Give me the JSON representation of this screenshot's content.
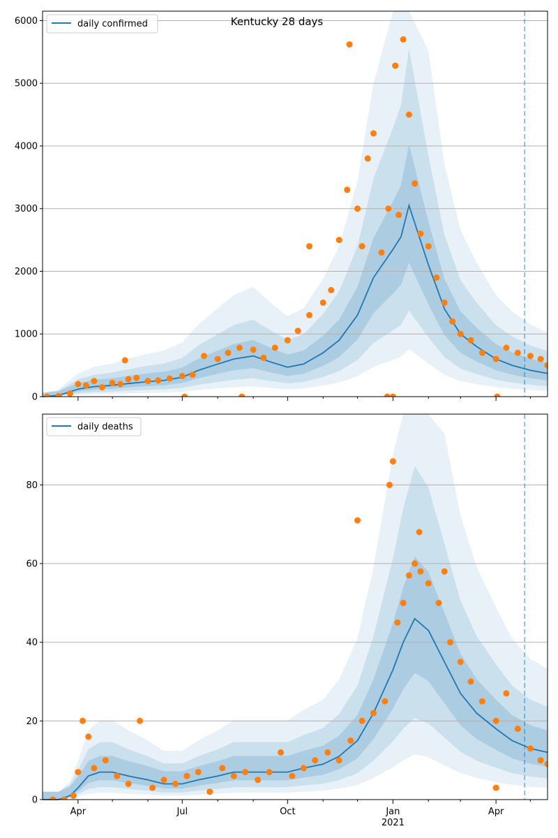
{
  "chart_data": [
    {
      "type": "line",
      "title": "Kentucky 28 days",
      "xlabel": "",
      "ylabel": "",
      "ylim": [
        0,
        6150
      ],
      "yticks": [
        0,
        1000,
        2000,
        3000,
        4000,
        5000,
        6000
      ],
      "grid": "horizontal",
      "legend": "upper-left",
      "x_range": [
        "2020-03-01",
        "2021-05-16"
      ],
      "forecast_line_date": "2021-04-26",
      "series": [
        {
          "name": "daily confirmed",
          "kind": "line",
          "color": "#1f77b4",
          "x": [
            "2020-03-01",
            "2020-03-15",
            "2020-04-01",
            "2020-04-15",
            "2020-05-01",
            "2020-05-15",
            "2020-06-01",
            "2020-06-15",
            "2020-07-01",
            "2020-07-15",
            "2020-08-01",
            "2020-08-15",
            "2020-09-01",
            "2020-09-15",
            "2020-10-01",
            "2020-10-15",
            "2020-11-01",
            "2020-11-15",
            "2020-12-01",
            "2020-12-15",
            "2021-01-01",
            "2021-01-08",
            "2021-01-15",
            "2021-02-01",
            "2021-02-15",
            "2021-03-01",
            "2021-03-15",
            "2021-04-01",
            "2021-04-15",
            "2021-05-01",
            "2021-05-16"
          ],
          "y": [
            0,
            20,
            120,
            160,
            180,
            210,
            240,
            260,
            310,
            420,
            520,
            600,
            650,
            560,
            470,
            520,
            700,
            900,
            1300,
            1900,
            2350,
            2550,
            3050,
            2100,
            1400,
            1000,
            800,
            600,
            500,
            420,
            370
          ]
        },
        {
          "name": "",
          "kind": "scatter",
          "color": "#ff7f0e",
          "x": [
            "2020-03-05",
            "2020-03-15",
            "2020-03-25",
            "2020-04-01",
            "2020-04-08",
            "2020-04-15",
            "2020-04-22",
            "2020-05-01",
            "2020-05-08",
            "2020-05-15",
            "2020-05-22",
            "2020-06-01",
            "2020-06-10",
            "2020-06-20",
            "2020-07-01",
            "2020-07-10",
            "2020-07-20",
            "2020-08-01",
            "2020-08-10",
            "2020-08-20",
            "2020-09-01",
            "2020-09-10",
            "2020-09-20",
            "2020-10-01",
            "2020-10-10",
            "2020-10-20",
            "2020-11-01",
            "2020-11-08",
            "2020-11-15",
            "2020-11-22",
            "2020-12-01",
            "2020-12-05",
            "2020-12-10",
            "2020-12-15",
            "2020-12-22",
            "2020-12-28",
            "2021-01-03",
            "2021-01-06",
            "2021-01-10",
            "2021-01-15",
            "2021-01-20",
            "2021-01-25",
            "2021-02-01",
            "2021-02-08",
            "2021-02-15",
            "2021-02-22",
            "2021-03-01",
            "2021-03-10",
            "2021-03-20",
            "2021-04-01",
            "2021-04-10",
            "2021-04-20",
            "2021-05-01",
            "2021-05-10",
            "2021-05-16",
            "2020-05-12",
            "2020-07-03",
            "2020-08-22",
            "2020-10-20",
            "2020-11-24",
            "2020-12-27",
            "2021-01-01",
            "2021-04-02"
          ],
          "y": [
            0,
            10,
            50,
            200,
            180,
            250,
            150,
            220,
            200,
            280,
            300,
            250,
            260,
            290,
            330,
            350,
            650,
            600,
            700,
            780,
            750,
            620,
            780,
            900,
            1050,
            1300,
            1500,
            1700,
            2500,
            3300,
            3000,
            2400,
            3800,
            4200,
            2300,
            3000,
            5280,
            2900,
            5700,
            4500,
            3400,
            2600,
            2400,
            1900,
            1500,
            1200,
            1000,
            900,
            700,
            600,
            780,
            700,
            650,
            600,
            500,
            580,
            0,
            0,
            2400,
            5620,
            0,
            0,
            0
          ]
        }
      ]
    },
    {
      "type": "line",
      "title": "",
      "xlabel": "",
      "ylabel": "",
      "ylim": [
        0,
        98
      ],
      "yticks": [
        0,
        20,
        40,
        60,
        80
      ],
      "grid": "horizontal",
      "legend": "upper-left",
      "x_range": [
        "2020-03-01",
        "2021-05-16"
      ],
      "x_tick_labels": [
        {
          "date": "2020-04-01",
          "label": "Apr"
        },
        {
          "date": "2020-07-01",
          "label": "Jul"
        },
        {
          "date": "2020-10-01",
          "label": "Oct"
        },
        {
          "date": "2021-01-01",
          "label": "Jan"
        },
        {
          "date": "2021-04-01",
          "label": "Apr"
        }
      ],
      "x_year_label": {
        "date": "2021-01-01",
        "label": "2021"
      },
      "forecast_line_date": "2021-04-26",
      "series": [
        {
          "name": "daily deaths",
          "kind": "line",
          "color": "#1f77b4",
          "x": [
            "2020-03-01",
            "2020-03-15",
            "2020-03-25",
            "2020-04-01",
            "2020-04-10",
            "2020-04-20",
            "2020-05-01",
            "2020-05-15",
            "2020-06-01",
            "2020-06-15",
            "2020-07-01",
            "2020-07-15",
            "2020-08-01",
            "2020-08-15",
            "2020-09-01",
            "2020-09-15",
            "2020-10-01",
            "2020-10-15",
            "2020-11-01",
            "2020-11-15",
            "2020-12-01",
            "2020-12-15",
            "2021-01-01",
            "2021-01-10",
            "2021-01-20",
            "2021-02-01",
            "2021-02-15",
            "2021-03-01",
            "2021-03-15",
            "2021-04-01",
            "2021-04-15",
            "2021-05-01",
            "2021-05-16"
          ],
          "y": [
            0,
            0,
            1,
            3,
            6,
            7,
            7,
            6,
            5,
            4,
            4,
            5,
            6,
            7,
            7,
            7,
            7,
            8,
            9,
            11,
            15,
            22,
            33,
            40,
            46,
            43,
            35,
            27,
            22,
            18,
            15,
            13,
            12
          ]
        },
        {
          "name": "",
          "kind": "scatter",
          "color": "#ff7f0e",
          "x": [
            "2020-03-10",
            "2020-03-20",
            "2020-03-28",
            "2020-04-01",
            "2020-04-05",
            "2020-04-10",
            "2020-04-15",
            "2020-04-25",
            "2020-05-05",
            "2020-05-15",
            "2020-05-25",
            "2020-06-05",
            "2020-06-15",
            "2020-06-25",
            "2020-07-05",
            "2020-07-15",
            "2020-07-25",
            "2020-08-05",
            "2020-08-15",
            "2020-08-25",
            "2020-09-05",
            "2020-09-15",
            "2020-09-25",
            "2020-10-05",
            "2020-10-15",
            "2020-10-25",
            "2020-11-05",
            "2020-11-15",
            "2020-11-25",
            "2020-12-05",
            "2020-12-15",
            "2020-12-25",
            "2020-12-29",
            "2021-01-01",
            "2021-01-05",
            "2021-01-10",
            "2021-01-15",
            "2021-01-20",
            "2021-01-25",
            "2021-02-01",
            "2021-02-10",
            "2021-02-20",
            "2021-03-01",
            "2021-03-10",
            "2021-03-20",
            "2021-04-01",
            "2021-04-10",
            "2021-04-20",
            "2021-05-01",
            "2021-05-10",
            "2021-05-16",
            "2020-12-01",
            "2021-01-24",
            "2021-02-15",
            "2021-04-01"
          ],
          "y": [
            0,
            0,
            1,
            7,
            20,
            16,
            8,
            10,
            6,
            4,
            20,
            3,
            5,
            4,
            6,
            7,
            2,
            8,
            6,
            7,
            5,
            7,
            12,
            6,
            8,
            10,
            12,
            10,
            15,
            20,
            22,
            25,
            80,
            86,
            45,
            50,
            57,
            60,
            58,
            55,
            50,
            40,
            35,
            30,
            25,
            20,
            27,
            18,
            13,
            10,
            9,
            71,
            68,
            58,
            3
          ]
        }
      ]
    }
  ]
}
